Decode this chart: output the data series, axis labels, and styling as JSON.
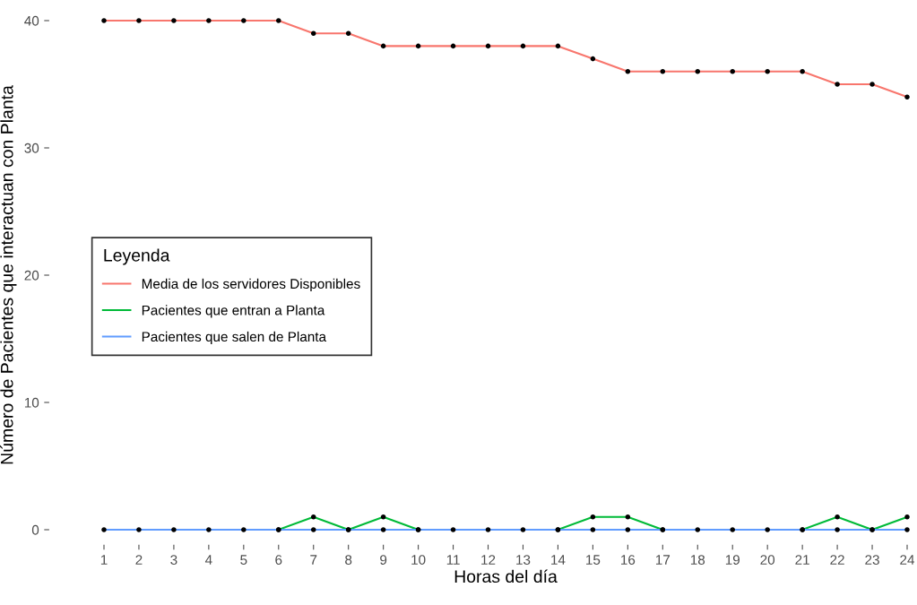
{
  "chart_data": {
    "type": "line",
    "xlabel": "Horas del día",
    "ylabel": "Número de Pacientes que interactuan con Planta",
    "legend_title": "Leyenda",
    "x": [
      1,
      2,
      3,
      4,
      5,
      6,
      7,
      8,
      9,
      10,
      11,
      12,
      13,
      14,
      15,
      16,
      17,
      18,
      19,
      20,
      21,
      22,
      23,
      24
    ],
    "series": [
      {
        "name": "Media de los servidores Disponibles",
        "color": "#f8766d",
        "values": [
          40,
          40,
          40,
          40,
          40,
          40,
          39,
          39,
          38,
          38,
          38,
          38,
          38,
          38,
          37,
          36,
          36,
          36,
          36,
          36,
          36,
          35,
          35,
          34
        ]
      },
      {
        "name": "Pacientes que entran a Planta",
        "color": "#00ba38",
        "values": [
          null,
          null,
          null,
          null,
          null,
          0,
          1,
          0,
          1,
          0,
          null,
          null,
          null,
          0,
          1,
          1,
          0,
          null,
          null,
          null,
          0,
          1,
          0,
          1
        ]
      },
      {
        "name": "Pacientes que salen de Planta",
        "color": "#619cff",
        "values": [
          0,
          0,
          0,
          0,
          0,
          0,
          0,
          0,
          0,
          0,
          0,
          0,
          0,
          0,
          0,
          0,
          0,
          0,
          0,
          0,
          0,
          0,
          0,
          0
        ]
      }
    ],
    "xlim": [
      1,
      24
    ],
    "xticks": [
      1,
      2,
      3,
      4,
      5,
      6,
      7,
      8,
      9,
      10,
      11,
      12,
      13,
      14,
      15,
      16,
      17,
      18,
      19,
      20,
      21,
      22,
      23,
      24
    ],
    "ylim": [
      0,
      40
    ],
    "yticks": [
      0,
      10,
      20,
      30,
      40
    ],
    "grid": false,
    "legend": "left",
    "marker": "circle",
    "line_style": "solid"
  }
}
